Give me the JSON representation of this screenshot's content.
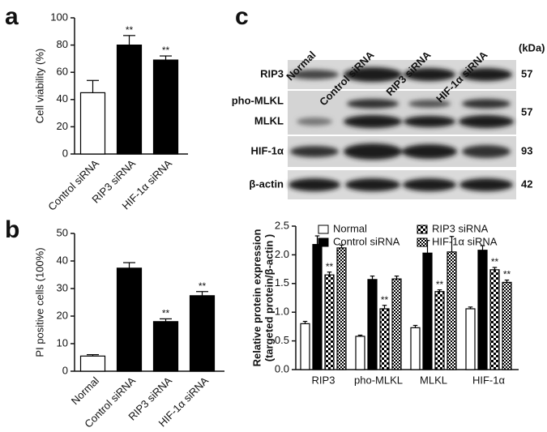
{
  "chart_data": [
    {
      "type": "bar",
      "label": "a",
      "ylabel": [
        "Cell viability (%)"
      ],
      "categories": [
        "Control siRNA",
        "RIP3 siRNA",
        "HIF-1α siRNA"
      ],
      "values": [
        45,
        80,
        69
      ],
      "errors": [
        9,
        7,
        3
      ],
      "colors": [
        "#ffffff",
        "#000000",
        "#000000"
      ],
      "significance": [
        null,
        "**",
        "**"
      ],
      "ylim": [
        0,
        100
      ],
      "yticks": [
        0,
        20,
        40,
        60,
        80,
        100
      ]
    },
    {
      "type": "bar",
      "label": "b",
      "ylabel": [
        "PI positive cells (100%)"
      ],
      "categories": [
        "Normal",
        "Control siRNA",
        "RIP3 siRNA",
        "HIF-1α siRNA"
      ],
      "values": [
        5.5,
        37.4,
        18,
        27.4
      ],
      "errors": [
        0.5,
        2,
        1,
        1.5
      ],
      "colors": [
        "#ffffff",
        "#000000",
        "#000000",
        "#000000"
      ],
      "significance": [
        null,
        null,
        "**",
        "**"
      ],
      "ylim": [
        0,
        50
      ],
      "yticks": [
        0,
        10,
        20,
        30,
        40,
        50
      ]
    },
    {
      "type": "grouped-bar",
      "label": "c",
      "ylabel": [
        "Relative protein expression",
        "(targeted protein/β-actin )"
      ],
      "categories": [
        "RIP3",
        "pho-MLKL",
        "MLKL",
        "HIF-1α"
      ],
      "series": [
        {
          "name": "Normal",
          "color": "#ffffff",
          "values": [
            0.8,
            0.58,
            0.73,
            1.06
          ],
          "errors": [
            0.04,
            0.02,
            0.04,
            0.03
          ],
          "significance": [
            null,
            null,
            null,
            null
          ]
        },
        {
          "name": "Control siRNA",
          "color": "#000000",
          "values": [
            2.18,
            1.57,
            2.03,
            2.08
          ],
          "errors": [
            0.15,
            0.06,
            0.22,
            0.08
          ],
          "significance": [
            null,
            null,
            null,
            null
          ]
        },
        {
          "name": "RIP3 siRNA",
          "color": "#000000",
          "pattern": "checker",
          "values": [
            1.65,
            1.06,
            1.36,
            1.74
          ],
          "errors": [
            0.05,
            0.06,
            0.03,
            0.04
          ],
          "significance": [
            "**",
            "**",
            "**",
            "**"
          ]
        },
        {
          "name": "HIF-1α siRNA",
          "color": "#000000",
          "pattern": "checker-fine",
          "values": [
            2.12,
            1.58,
            2.05,
            1.52
          ],
          "errors": [
            0.05,
            0.05,
            0.27,
            0.04
          ],
          "significance": [
            null,
            null,
            null,
            "**"
          ]
        }
      ],
      "legend": "top",
      "ylim": [
        0,
        2.5
      ],
      "yticks": [
        {
          "value": 0,
          "label": "0.0"
        },
        0.5,
        {
          "value": 1,
          "label": "1.0"
        },
        1.5,
        {
          "value": 2,
          "label": "2.0"
        },
        2.5
      ]
    }
  ],
  "blot": {
    "lanes": [
      "Normal",
      "Control siRNA",
      "RIP3 siRNA",
      "HIF-1α siRNA"
    ],
    "unit": "(kDa)",
    "rows": [
      {
        "labels": [
          "RIP3"
        ],
        "kda": 57
      },
      {
        "labels": [
          "pho-MLKL",
          "MLKL"
        ],
        "kda": 57
      },
      {
        "labels": [
          "HIF-1α"
        ],
        "kda": 93
      },
      {
        "labels": [
          "β-actin"
        ],
        "kda": 42
      }
    ]
  }
}
